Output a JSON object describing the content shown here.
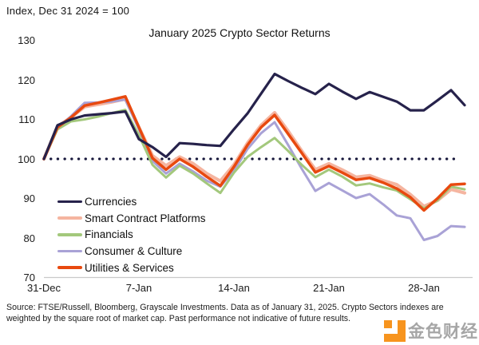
{
  "header": {
    "index_label": "Index, Dec 31 2024 = 100"
  },
  "chart_data": {
    "type": "line",
    "title": "January 2025 Crypto Sector Returns",
    "x": [
      "31-Dec",
      "1-Jan",
      "2-Jan",
      "3-Jan",
      "4-Jan",
      "5-Jan",
      "6-Jan",
      "7-Jan",
      "8-Jan",
      "9-Jan",
      "10-Jan",
      "11-Jan",
      "12-Jan",
      "13-Jan",
      "14-Jan",
      "15-Jan",
      "16-Jan",
      "17-Jan",
      "18-Jan",
      "19-Jan",
      "20-Jan",
      "21-Jan",
      "22-Jan",
      "23-Jan",
      "24-Jan",
      "25-Jan",
      "26-Jan",
      "27-Jan",
      "28-Jan",
      "29-Jan",
      "30-Jan",
      "31-Jan"
    ],
    "x_tick_labels": [
      "31-Dec",
      "7-Jan",
      "14-Jan",
      "21-Jan",
      "28-Jan"
    ],
    "x_tick_indices": [
      0,
      7,
      14,
      21,
      28
    ],
    "y_ticks": [
      130,
      120,
      110,
      100,
      90,
      80,
      70
    ],
    "ylim": [
      70,
      130
    ],
    "grid": false,
    "legend_position": "inside-lower-left",
    "baseline": {
      "value": 100,
      "style": "dotted",
      "color": "#18183C"
    },
    "axis_color": "#C9C9C9",
    "series": [
      {
        "name": "Currencies",
        "color": "#26224B",
        "values": [
          100,
          108.5,
          110.0,
          111.0,
          111.3,
          111.6,
          112.0,
          105.0,
          103.0,
          100.5,
          104.0,
          103.8,
          103.5,
          103.3,
          107.5,
          111.5,
          116.5,
          121.5,
          119.7,
          118.0,
          116.4,
          119.0,
          117.0,
          115.2,
          116.9,
          115.7,
          114.5,
          112.3,
          112.3,
          114.8,
          117.4,
          113.6
        ]
      },
      {
        "name": "Smart Contract Platforms",
        "color": "#F5B5A0",
        "values": [
          100,
          108.2,
          110.5,
          113.2,
          113.8,
          114.4,
          115.2,
          108.0,
          100.8,
          98.3,
          100.5,
          98.8,
          96.3,
          94.4,
          98.5,
          104.0,
          108.5,
          111.7,
          107.0,
          102.0,
          97.3,
          98.8,
          97.2,
          95.4,
          95.8,
          94.5,
          93.5,
          91.0,
          88.0,
          89.5,
          92.3,
          91.4
        ]
      },
      {
        "name": "Financials",
        "color": "#A3C87C",
        "values": [
          100,
          107.5,
          109.5,
          110.0,
          110.7,
          111.6,
          112.4,
          106.0,
          98.5,
          95.3,
          98.3,
          96.3,
          93.8,
          91.4,
          96.5,
          100.5,
          103.0,
          105.3,
          102.0,
          98.5,
          95.4,
          97.3,
          95.5,
          93.3,
          93.8,
          92.8,
          92.0,
          89.8,
          87.5,
          89.5,
          93.0,
          92.3
        ]
      },
      {
        "name": "Consumer & Culture",
        "color": "#A9A2D6",
        "values": [
          100,
          107.8,
          110.8,
          114.2,
          114.3,
          114.5,
          115.0,
          107.5,
          99.5,
          96.3,
          98.8,
          96.8,
          94.5,
          93.0,
          97.0,
          102.5,
          106.5,
          109.3,
          103.5,
          97.5,
          91.9,
          93.9,
          92.0,
          90.1,
          91.1,
          88.5,
          85.7,
          85.0,
          79.5,
          80.5,
          83.0,
          82.8
        ]
      },
      {
        "name": "Utilities & Services",
        "color": "#E8490F",
        "values": [
          100,
          108.0,
          110.5,
          113.5,
          114.2,
          115.0,
          115.8,
          108.0,
          100.2,
          97.3,
          100.0,
          98.0,
          95.5,
          93.2,
          98.0,
          103.5,
          108.0,
          111.1,
          106.3,
          101.5,
          96.6,
          98.2,
          96.5,
          94.7,
          95.2,
          94.0,
          92.5,
          90.3,
          87.0,
          90.0,
          93.5,
          93.7
        ]
      }
    ]
  },
  "footer": {
    "source_text": "Source: FTSE/Russell, Bloomberg, Grayscale Investments. Data as of January 31, 2025. Crypto Sectors indexes are weighted by the square root of market cap. Past performance not indicative of future results."
  },
  "watermark": {
    "text": "金色财经",
    "logo_color": "#F7941E"
  }
}
